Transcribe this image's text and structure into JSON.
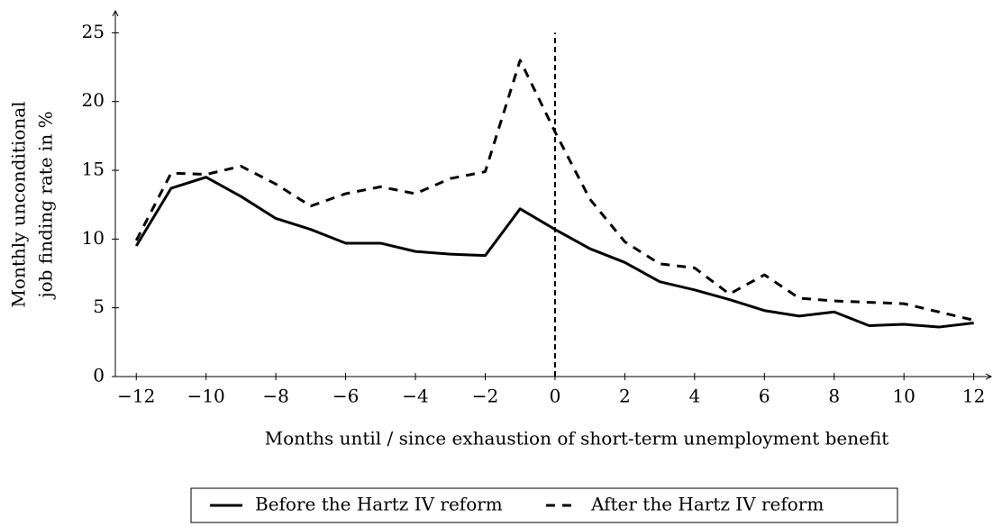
{
  "chart_data": {
    "type": "line",
    "x_label": "Months until / since exhaustion of short-term unemployment benefit",
    "y_label": [
      "Monthly unconditional",
      "job finding rate in %"
    ],
    "x": [
      -12,
      -11,
      -10,
      -9,
      -8,
      -7,
      -6,
      -5,
      -4,
      -3,
      -2,
      -1,
      0,
      1,
      2,
      3,
      4,
      5,
      6,
      7,
      8,
      9,
      10,
      11,
      12
    ],
    "series": [
      {
        "name": "Before the Hartz IV reform",
        "color": "#000000",
        "dash": "solid",
        "values": [
          9.5,
          13.7,
          14.5,
          13.1,
          11.5,
          10.7,
          9.7,
          9.7,
          9.1,
          8.9,
          8.8,
          12.2,
          10.7,
          9.3,
          8.3,
          6.9,
          6.3,
          5.6,
          4.8,
          4.4,
          4.7,
          3.7,
          3.8,
          3.6,
          3.9
        ]
      },
      {
        "name": "After the Hartz IV reform",
        "color": "#000000",
        "dash": "dashed",
        "values": [
          9.9,
          14.8,
          14.7,
          15.3,
          14.0,
          12.4,
          13.3,
          13.8,
          13.3,
          14.4,
          14.9,
          23.0,
          17.8,
          12.9,
          9.8,
          8.2,
          7.9,
          6.0,
          7.4,
          5.7,
          5.5,
          5.4,
          5.3,
          4.7,
          4.1
        ]
      }
    ],
    "reference_line": {
      "x": 0,
      "y": [
        0,
        25
      ]
    },
    "xlim": [
      -12.6,
      12.5
    ],
    "xticks": [
      {
        "value": -12,
        "label": "−12"
      },
      {
        "value": -10,
        "label": "−10"
      },
      {
        "value": -8,
        "label": "−8"
      },
      {
        "value": -6,
        "label": "−6"
      },
      {
        "value": -4,
        "label": "−4"
      },
      {
        "value": -2,
        "label": "−2"
      },
      0,
      2,
      4,
      6,
      8,
      10,
      12
    ],
    "ylim": [
      0,
      26.6
    ],
    "yticks": [
      0,
      5,
      10,
      15,
      20,
      25
    ],
    "legend": "bottom"
  }
}
